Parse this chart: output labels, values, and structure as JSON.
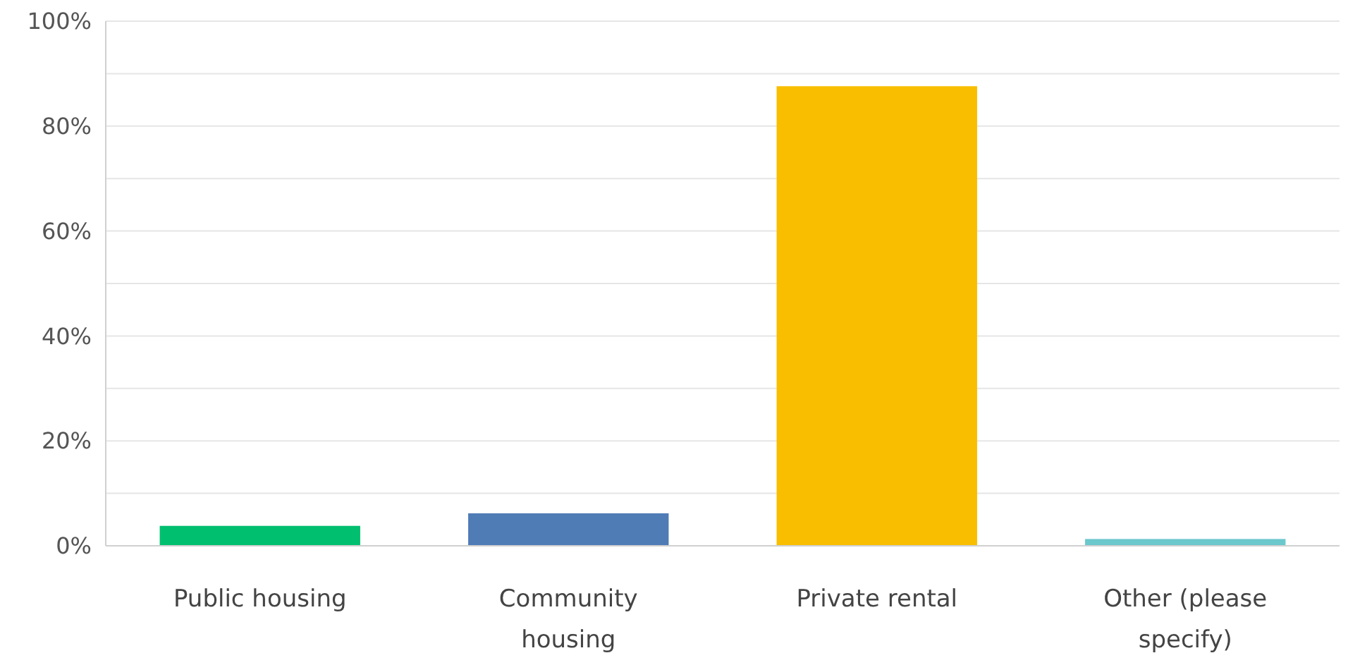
{
  "chart_data": {
    "type": "bar",
    "categories": [
      "Public housing",
      "Community housing",
      "Private rental",
      "Other (please specify)"
    ],
    "values": [
      3.8,
      6.2,
      87.6,
      1.3
    ],
    "colors": [
      "#00bf6f",
      "#507cb6",
      "#f9be00",
      "#6bc8cd"
    ],
    "ylim": [
      0,
      100
    ],
    "yticks": [
      {
        "value": 0,
        "label": "0%"
      },
      {
        "value": 10,
        "label": null
      },
      {
        "value": 20,
        "label": "20%"
      },
      {
        "value": 30,
        "label": null
      },
      {
        "value": 40,
        "label": "40%"
      },
      {
        "value": 50,
        "label": null
      },
      {
        "value": 60,
        "label": "60%"
      },
      {
        "value": 70,
        "label": null
      },
      {
        "value": 80,
        "label": "80%"
      },
      {
        "value": 90,
        "label": null
      },
      {
        "value": 100,
        "label": "100%"
      }
    ],
    "grid": "y"
  }
}
